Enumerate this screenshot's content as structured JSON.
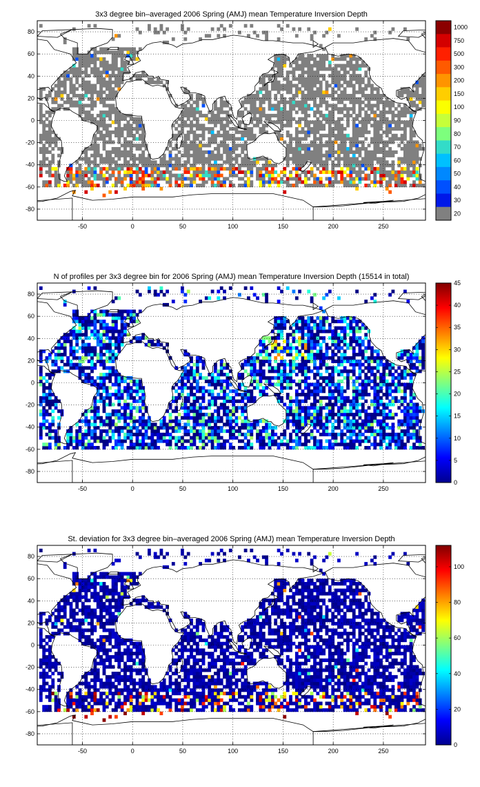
{
  "chart_data": [
    {
      "type": "heatmap",
      "title": "3x3 degree bin–averaged 2006 Spring (AMJ) mean Temperature Inversion Depth",
      "xlim": [
        -95,
        292
      ],
      "ylim": [
        -90,
        90
      ],
      "xticks": [
        -50,
        0,
        50,
        100,
        150,
        200,
        250
      ],
      "yticks": [
        80,
        60,
        40,
        20,
        0,
        -20,
        -40,
        -60,
        -80
      ],
      "grid": true,
      "colorbar": {
        "scale": "categorical",
        "labels": [
          "1000",
          "750",
          "500",
          "300",
          "200",
          "150",
          "100",
          "90",
          "80",
          "70",
          "60",
          "50",
          "40",
          "30",
          "20"
        ],
        "colors": [
          "#8b0000",
          "#d40000",
          "#ff2000",
          "#ff5a00",
          "#ff9400",
          "#ffce00",
          "#fbff00",
          "#c6ff39",
          "#7dff7d",
          "#33dcc8",
          "#00c0ff",
          "#0088ff",
          "#0050ff",
          "#0018e8",
          "#808080"
        ]
      }
    },
    {
      "type": "heatmap",
      "title": "N of profiles per 3x3 degree bin for 2006 Spring (AMJ) mean Temperature Inversion Depth  (15514 in total)",
      "xlim": [
        -95,
        292
      ],
      "ylim": [
        -90,
        90
      ],
      "xticks": [
        -50,
        0,
        50,
        100,
        150,
        200,
        250
      ],
      "yticks": [
        80,
        60,
        40,
        20,
        0,
        -20,
        -40,
        -60,
        -80
      ],
      "grid": true,
      "colorbar": {
        "range": [
          0,
          45
        ],
        "ticks": [
          45,
          40,
          35,
          30,
          25,
          20,
          15,
          10,
          5,
          0
        ]
      }
    },
    {
      "type": "heatmap",
      "title": "St. deviation for 3x3 degree bin–averaged 2006 Spring (AMJ) mean Temperature Inversion Depth",
      "xlim": [
        -95,
        292
      ],
      "ylim": [
        -90,
        90
      ],
      "xticks": [
        -50,
        0,
        50,
        100,
        150,
        200,
        250
      ],
      "yticks": [
        80,
        60,
        40,
        20,
        0,
        -20,
        -40,
        -60,
        -80
      ],
      "grid": true,
      "colorbar": {
        "range": [
          0,
          112
        ],
        "ticks": [
          100,
          80,
          60,
          40,
          20,
          0
        ]
      }
    }
  ]
}
